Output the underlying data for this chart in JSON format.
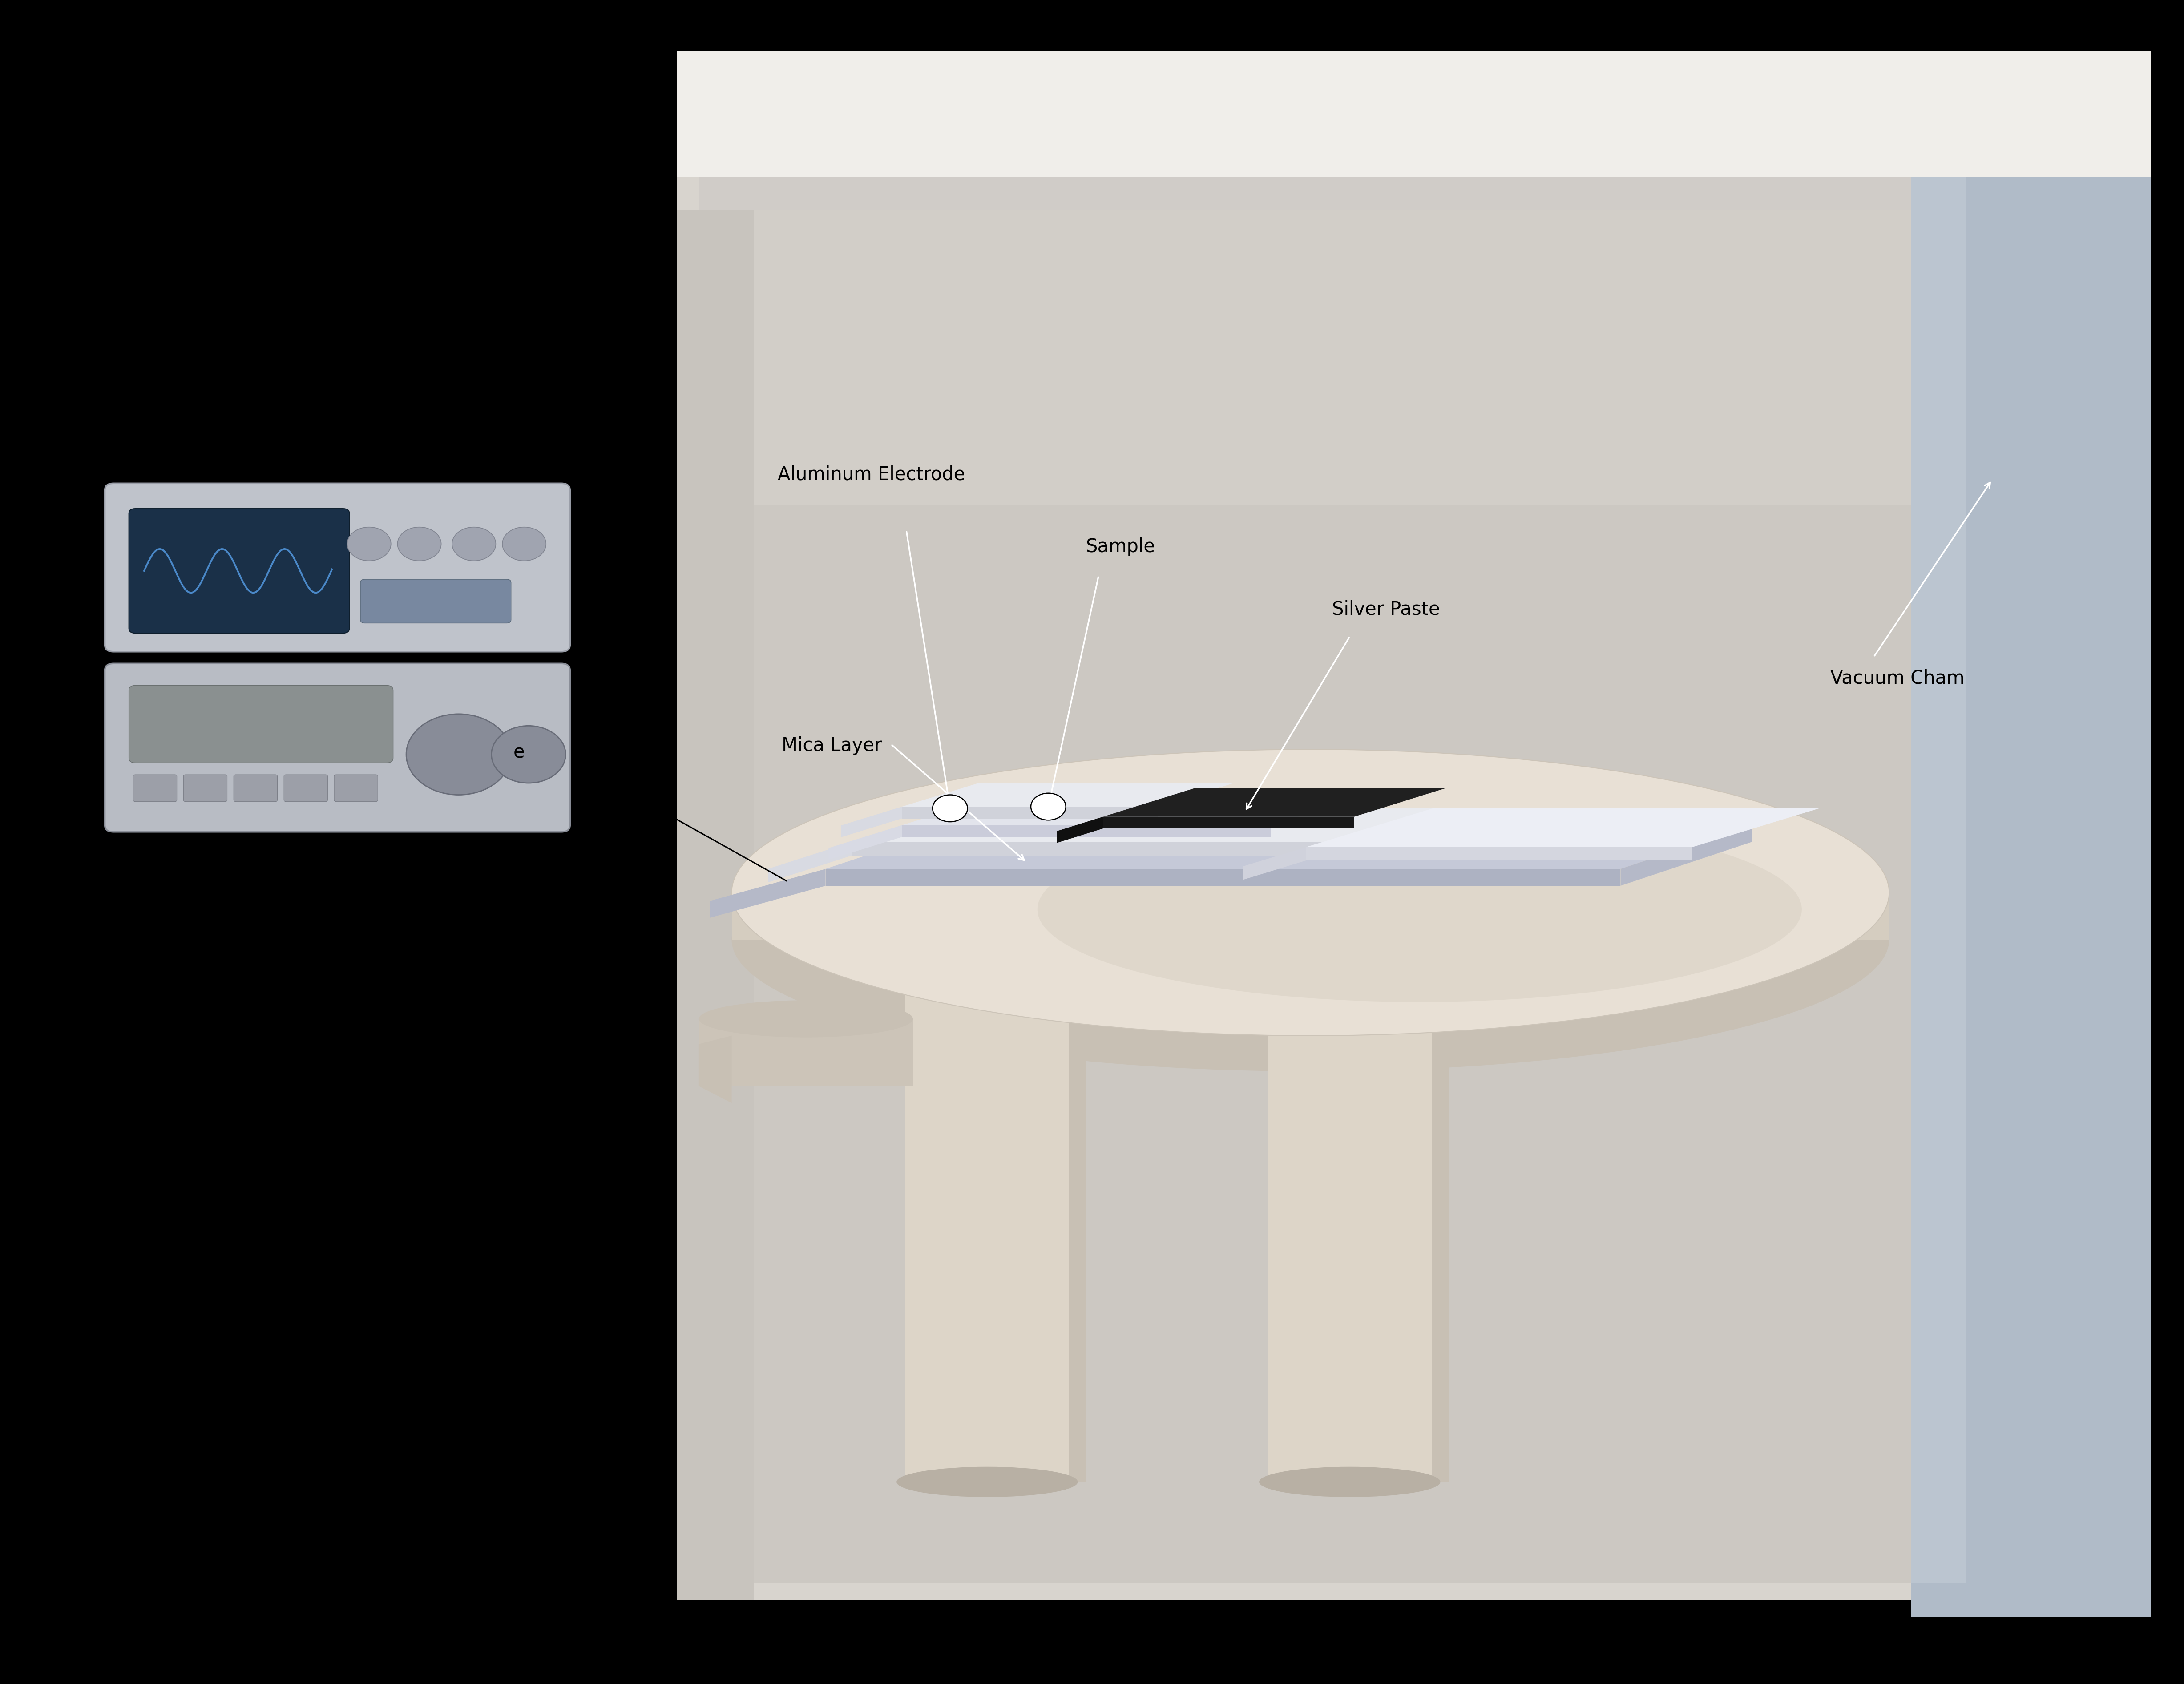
{
  "bg_color": "#000000",
  "fig_width": 49.09,
  "fig_height": 37.85,
  "labels": {
    "aluminum_electrode": "Aluminum Electrode",
    "sample": "Sample",
    "silver_paste": "Silver Paste",
    "vacuum_chamber": "Vacuum Cham",
    "mica_layer": "Mica Layer",
    "hot_plate_partial": "e"
  },
  "colors": {
    "chamber_back": "#d8d4ce",
    "chamber_back_inner": "#ccc8c2",
    "chamber_right_outer": "#b0bbc8",
    "chamber_right_inner": "#bbc5d0",
    "chamber_top_face": "#e8e6e2",
    "chamber_top_soffit": "#d0ccc8",
    "chamber_left_strip": "#c8c4be",
    "table_top_fill": "#e8e0d5",
    "table_edge": "#d5cdc0",
    "table_underedge": "#c8c0b4",
    "leg_body": "#ddd5c8",
    "leg_side": "#c8c0b4",
    "leg_shadow": "#b8b0a4",
    "bracket": "#ccc4b8",
    "mica_top": "#c5c9d8",
    "mica_front": "#adb2c2",
    "mica_side": "#b5b9c8",
    "elec_top": "#e8eaef",
    "elec_front": "#d0d2da",
    "elec_side": "#d8dae2",
    "sample_top": "#e2e4ec",
    "sample_front": "#caccda",
    "silver_top": "#202020",
    "silver_front": "#181818",
    "rblock_top": "#eceef5",
    "rblock_front": "#d4d6df",
    "inst_body1": "#bfc3cb",
    "inst_screen": "#1a3048",
    "inst_wave": "#4a88c8",
    "inst_body2": "#b8bcc4",
    "black": "#000000",
    "white": "#ffffff"
  },
  "font_size": 30,
  "font_family": "sans-serif"
}
